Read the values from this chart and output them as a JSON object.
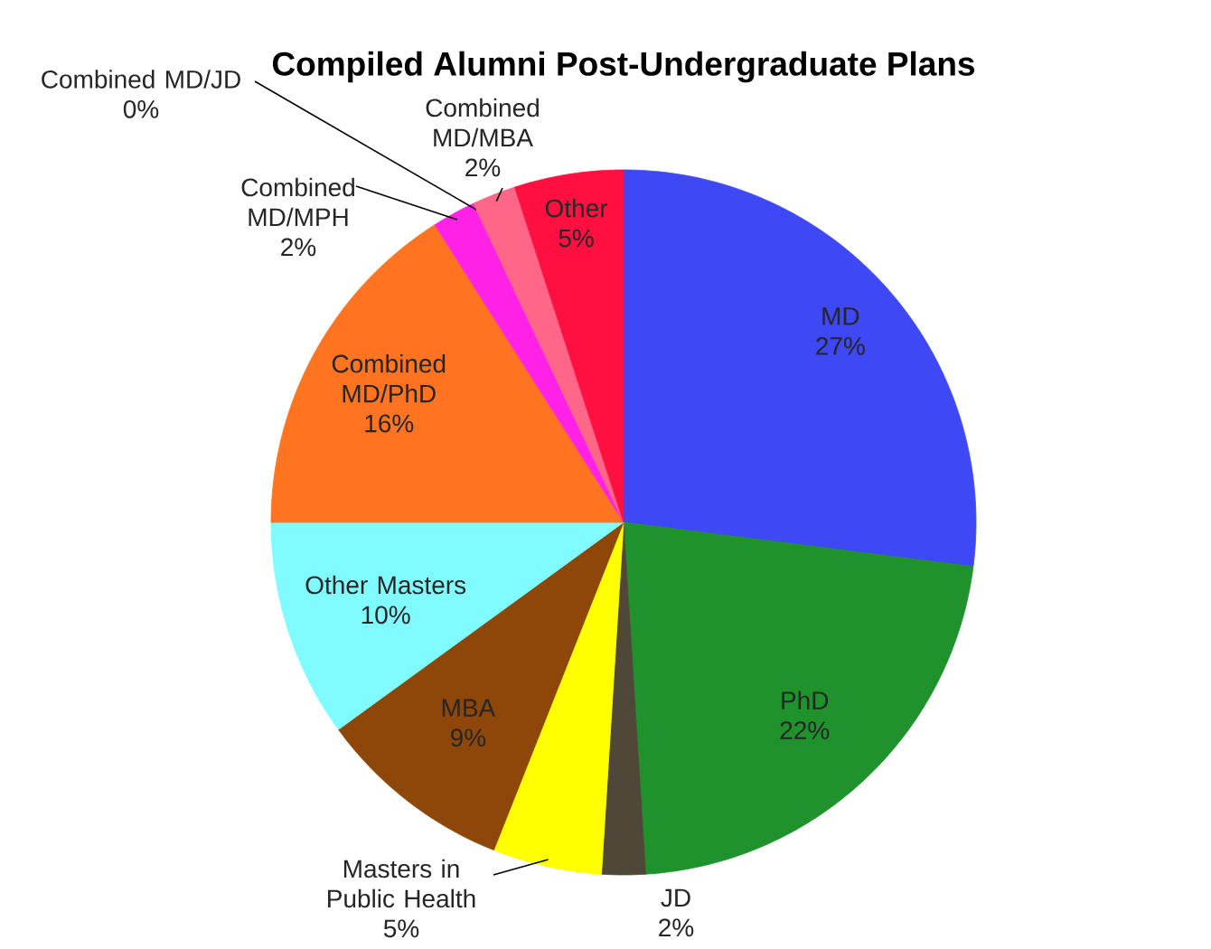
{
  "chart_data": {
    "type": "pie",
    "title": "Compiled Alumni Post-Undergraduate Plans",
    "categories": [
      "MD",
      "PhD",
      "JD",
      "Masters in Public Health",
      "MBA",
      "Other Masters",
      "Combined MD/PhD",
      "Combined MD/MPH",
      "Combined MD/JD",
      "Combined MD/MBA",
      "Other"
    ],
    "values": [
      27,
      22,
      2,
      5,
      9,
      10,
      16,
      2,
      0,
      2,
      5
    ],
    "value_labels": [
      "27%",
      "22%",
      "2%",
      "5%",
      "9%",
      "10%",
      "16%",
      "2%",
      "0%",
      "2%",
      "5%"
    ],
    "colors": [
      "#3f48f5",
      "#1f922c",
      "#4f4838",
      "#ffff00",
      "#8f4609",
      "#80fbff",
      "#ff7420",
      "#ff22e6",
      "#c4f7b4",
      "#ff6688",
      "#ff1040"
    ],
    "legend": false
  }
}
